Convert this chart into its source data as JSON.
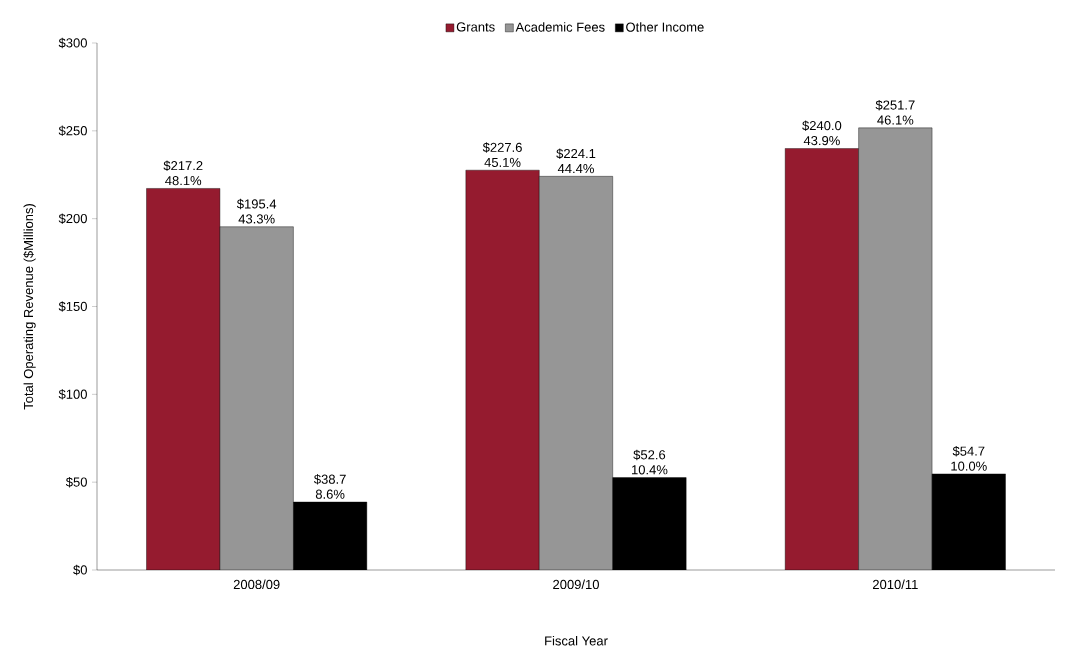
{
  "chart_data": {
    "type": "bar",
    "xlabel": "Fiscal Year",
    "ylabel": "Total Operating Revenue ($Millions)",
    "categories": [
      "2008/09",
      "2009/10",
      "2010/11"
    ],
    "series": [
      {
        "name": "Grants",
        "color": "#951b2f",
        "values": [
          217.2,
          227.6,
          240.0
        ],
        "value_labels": [
          "$217.2 48.1%",
          "$227.6 45.1%",
          "$240.0 43.9%"
        ]
      },
      {
        "name": "Academic Fees",
        "color": "#969696",
        "values": [
          195.4,
          224.1,
          251.7
        ],
        "value_labels": [
          "$195.4 43.3%",
          "$224.1 44.4%",
          "$251.7 46.1%"
        ]
      },
      {
        "name": "Other Income",
        "color": "#000000",
        "values": [
          38.7,
          52.6,
          54.7
        ],
        "value_labels": [
          "$38.7 8.6%",
          "$52.6 10.4%",
          "$54.7 10.0%"
        ]
      }
    ],
    "ylim": [
      0,
      300
    ],
    "yticks": [
      {
        "value": 0,
        "label": "$0"
      },
      {
        "value": 50,
        "label": "$50"
      },
      {
        "value": 100,
        "label": "$100"
      },
      {
        "value": 150,
        "label": "$150"
      },
      {
        "value": 200,
        "label": "$200"
      },
      {
        "value": 250,
        "label": "$250"
      },
      {
        "value": 300,
        "label": "$300"
      }
    ],
    "legend": "top",
    "grid": false
  }
}
